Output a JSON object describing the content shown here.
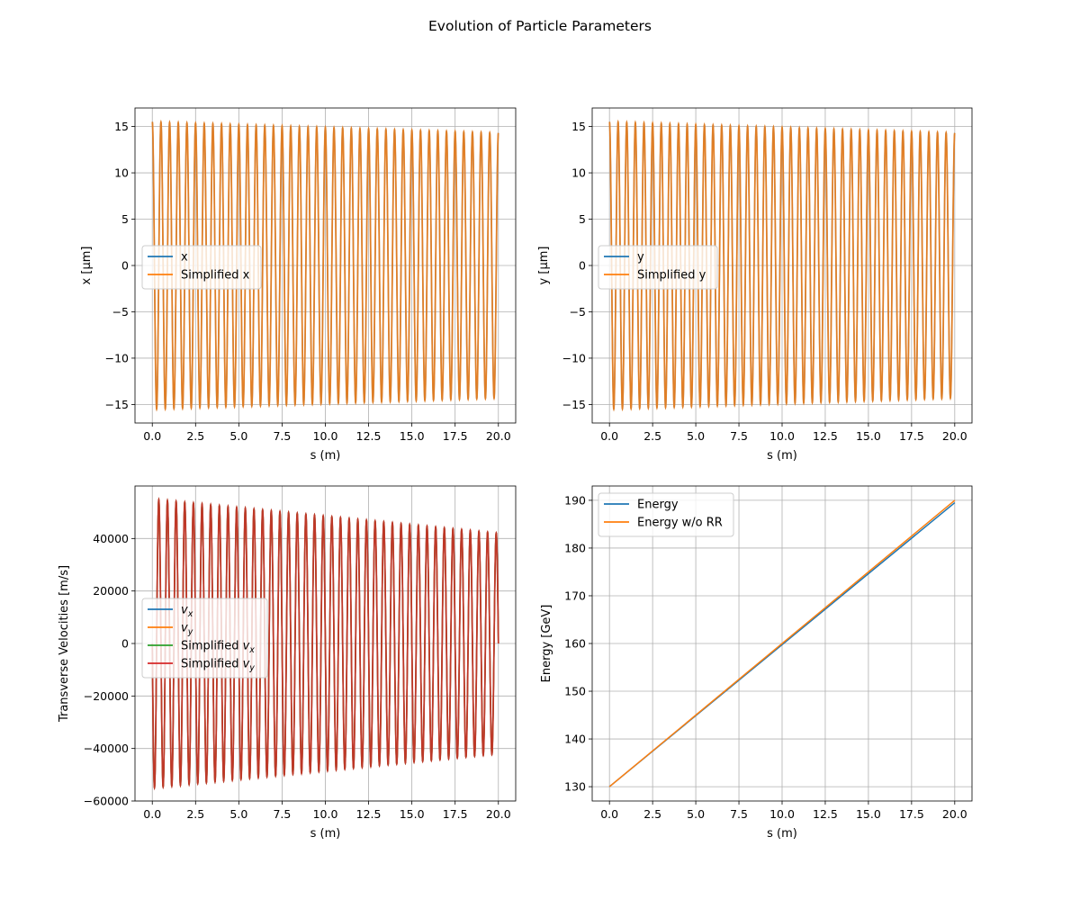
{
  "figure": {
    "suptitle": "Evolution of Particle Parameters"
  },
  "chart_data": [
    {
      "id": "x",
      "type": "line",
      "xlabel": "s (m)",
      "ylabel": "x [μm]",
      "xlim": [
        -1.0,
        21.0
      ],
      "ylim": [
        -17.0,
        17.0
      ],
      "xticks": [
        0.0,
        2.5,
        5.0,
        7.5,
        10.0,
        12.5,
        15.0,
        17.5,
        20.0
      ],
      "xtick_labels": [
        "0.0",
        "2.5",
        "5.0",
        "7.5",
        "10.0",
        "12.5",
        "15.0",
        "17.5",
        "20.0"
      ],
      "yticks": [
        -15,
        -10,
        -5,
        0,
        5,
        10,
        15
      ],
      "ytick_labels": [
        "−15",
        "−10",
        "−5",
        "0",
        "5",
        "10",
        "15"
      ],
      "grid": true,
      "legend": "center-left",
      "oscillation": {
        "cycles": 40,
        "amp_start": 15.5,
        "amp_end": 14.3,
        "phase": "cos",
        "s_range": [
          0,
          20
        ]
      },
      "series": [
        {
          "name": "x",
          "color": "#1f77b4"
        },
        {
          "name": "Simplified x",
          "color": "#ff7f0e"
        }
      ]
    },
    {
      "id": "y",
      "type": "line",
      "xlabel": "s (m)",
      "ylabel": "y [μm]",
      "xlim": [
        -1.0,
        21.0
      ],
      "ylim": [
        -17.0,
        17.0
      ],
      "xticks": [
        0.0,
        2.5,
        5.0,
        7.5,
        10.0,
        12.5,
        15.0,
        17.5,
        20.0
      ],
      "xtick_labels": [
        "0.0",
        "2.5",
        "5.0",
        "7.5",
        "10.0",
        "12.5",
        "15.0",
        "17.5",
        "20.0"
      ],
      "yticks": [
        -15,
        -10,
        -5,
        0,
        5,
        10,
        15
      ],
      "ytick_labels": [
        "−15",
        "−10",
        "−5",
        "0",
        "5",
        "10",
        "15"
      ],
      "grid": true,
      "legend": "center-left",
      "oscillation": {
        "cycles": 40,
        "amp_start": 15.5,
        "amp_end": 14.3,
        "phase": "cos",
        "s_range": [
          0,
          20
        ]
      },
      "series": [
        {
          "name": "y",
          "color": "#1f77b4"
        },
        {
          "name": "Simplified y",
          "color": "#ff7f0e"
        }
      ]
    },
    {
      "id": "v",
      "type": "line",
      "xlabel": "s (m)",
      "ylabel": "Transverse Velocities [m/s]",
      "xlim": [
        -1.0,
        21.0
      ],
      "ylim": [
        -60000,
        60000
      ],
      "xticks": [
        0.0,
        2.5,
        5.0,
        7.5,
        10.0,
        12.5,
        15.0,
        17.5,
        20.0
      ],
      "xtick_labels": [
        "0.0",
        "2.5",
        "5.0",
        "7.5",
        "10.0",
        "12.5",
        "15.0",
        "17.5",
        "20.0"
      ],
      "yticks": [
        -60000,
        -40000,
        -20000,
        0,
        20000,
        40000
      ],
      "ytick_labels": [
        "−60000",
        "−40000",
        "−20000",
        "0",
        "20000",
        "40000"
      ],
      "grid": true,
      "legend": "center-left",
      "oscillation": {
        "cycles": 40,
        "amp_start": 55000,
        "amp_end": 42000,
        "phase": "-sin",
        "s_range": [
          0,
          20
        ]
      },
      "series": [
        {
          "name": "v",
          "sub": "x",
          "color": "#1f77b4"
        },
        {
          "name": "v",
          "sub": "y",
          "color": "#ff7f0e"
        },
        {
          "name": "Simplified v",
          "sub": "x",
          "color": "#2ca02c"
        },
        {
          "name": "Simplified v",
          "sub": "y",
          "color": "#d62728"
        }
      ]
    },
    {
      "id": "energy",
      "type": "line",
      "xlabel": "s (m)",
      "ylabel": "Energy [GeV]",
      "xlim": [
        -1.0,
        21.0
      ],
      "ylim": [
        127.0,
        193.0
      ],
      "xticks": [
        0.0,
        2.5,
        5.0,
        7.5,
        10.0,
        12.5,
        15.0,
        17.5,
        20.0
      ],
      "xtick_labels": [
        "0.0",
        "2.5",
        "5.0",
        "7.5",
        "10.0",
        "12.5",
        "15.0",
        "17.5",
        "20.0"
      ],
      "yticks": [
        130,
        140,
        150,
        160,
        170,
        180,
        190
      ],
      "ytick_labels": [
        "130",
        "140",
        "150",
        "160",
        "170",
        "180",
        "190"
      ],
      "grid": true,
      "legend": "upper-left",
      "series": [
        {
          "name": "Energy",
          "color": "#1f77b4",
          "x": [
            0,
            20
          ],
          "y": [
            130.0,
            189.5
          ]
        },
        {
          "name": "Energy w/o RR",
          "color": "#ff7f0e",
          "x": [
            0,
            20
          ],
          "y": [
            130.0,
            190.0
          ]
        }
      ]
    }
  ]
}
